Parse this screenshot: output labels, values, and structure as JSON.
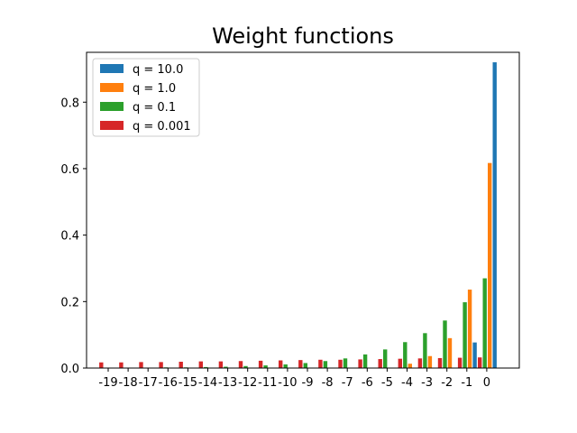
{
  "chart_data": {
    "type": "bar",
    "title": "Weight functions",
    "xlabel": "",
    "ylabel": "",
    "categories": [
      "-19",
      "-18",
      "-17",
      "-16",
      "-15",
      "-14",
      "-13",
      "-12",
      "-11",
      "-10",
      "-9",
      "-8",
      "-7",
      "-6",
      "-5",
      "-4",
      "-3",
      "-2",
      "-1",
      "0"
    ],
    "ylim": [
      0,
      0.95
    ],
    "yticks": [
      "0.0",
      "0.2",
      "0.4",
      "0.6",
      "0.8"
    ],
    "legend_position": "top-left",
    "grid": false,
    "series": [
      {
        "name": "q = 10.0",
        "color": "#1f77b4",
        "values": [
          0,
          0,
          0,
          0,
          0,
          0,
          0,
          0,
          0,
          0,
          0,
          0,
          0,
          0,
          0,
          0,
          0,
          0.001,
          0.077,
          0.92
        ]
      },
      {
        "name": "q = 1.0",
        "color": "#ff7f0e",
        "values": [
          0,
          0,
          0,
          0,
          0,
          0,
          0,
          0,
          0,
          0,
          0,
          0,
          0,
          0,
          0.001,
          0.013,
          0.036,
          0.09,
          0.236,
          0.617
        ]
      },
      {
        "name": "q = 0.1",
        "color": "#2ca02c",
        "values": [
          0,
          0.001,
          0.001,
          0.002,
          0.002,
          0.003,
          0.004,
          0.006,
          0.008,
          0.011,
          0.015,
          0.021,
          0.029,
          0.041,
          0.056,
          0.078,
          0.105,
          0.143,
          0.198,
          0.27
        ]
      },
      {
        "name": "q = 0.001",
        "color": "#d62728",
        "values": [
          0.017,
          0.017,
          0.018,
          0.018,
          0.019,
          0.02,
          0.02,
          0.021,
          0.022,
          0.023,
          0.024,
          0.025,
          0.025,
          0.026,
          0.027,
          0.028,
          0.029,
          0.03,
          0.031,
          0.032
        ]
      }
    ]
  }
}
